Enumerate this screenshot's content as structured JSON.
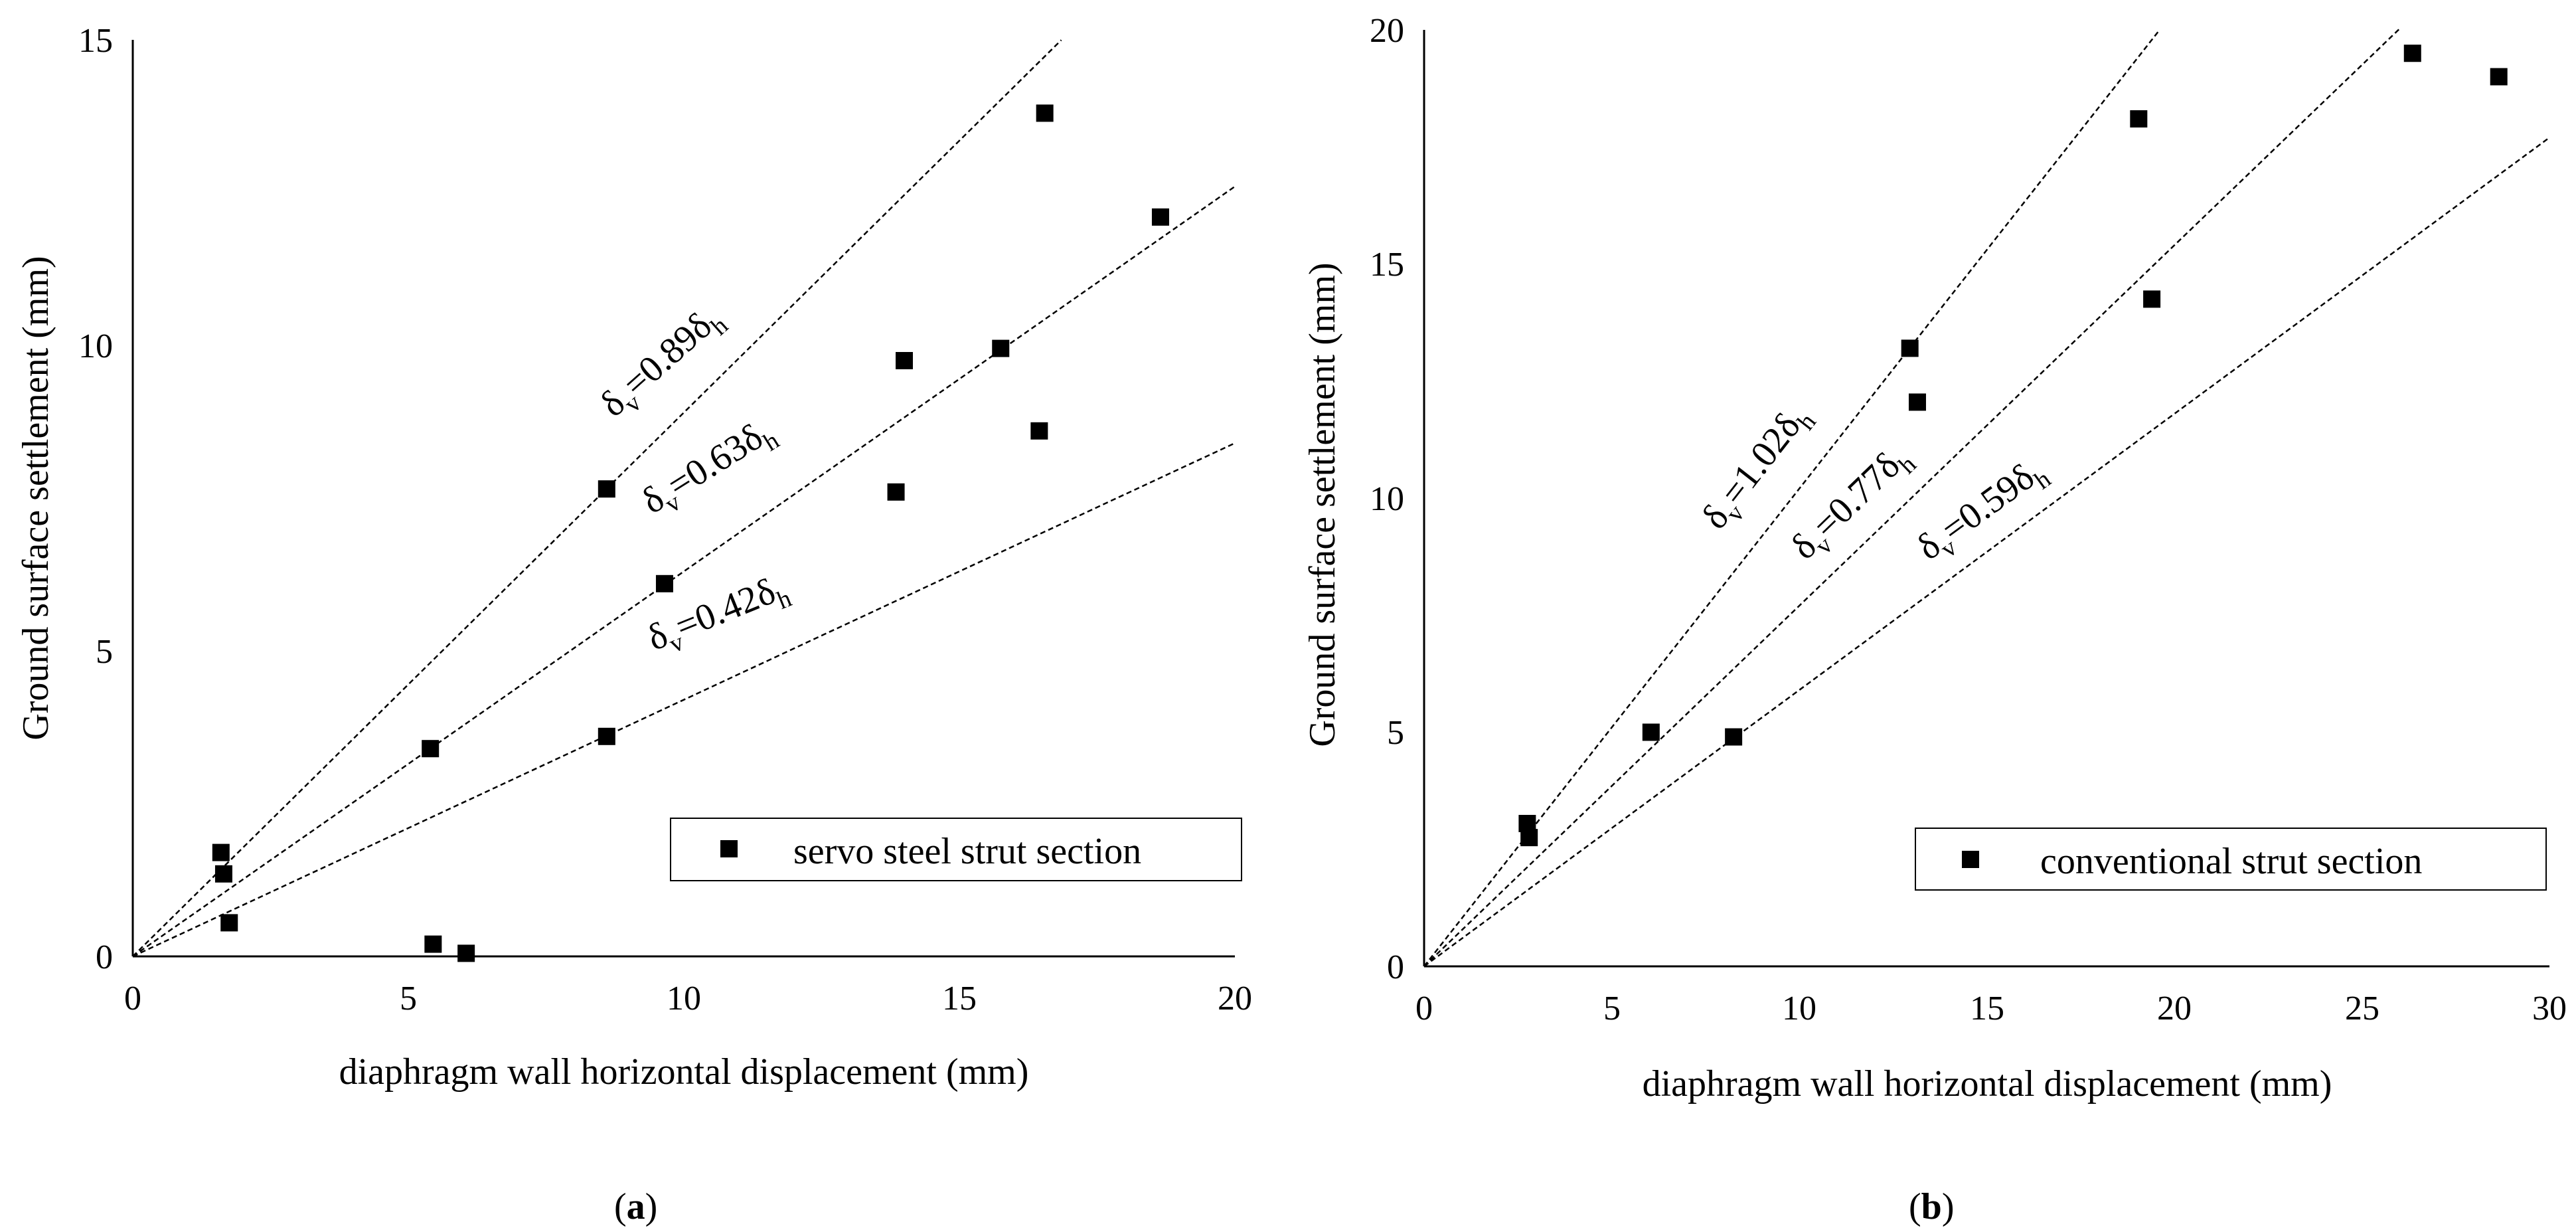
{
  "chart_data": [
    {
      "type": "scatter",
      "panel_label": "(a)",
      "panel_letter": "a",
      "xlabel": "diaphragm wall horizontal displacement (mm)",
      "ylabel": "Ground surface settlement (mm)",
      "xlim": [
        0,
        20
      ],
      "ylim": [
        0,
        15
      ],
      "xticks": [
        "0",
        "5",
        "10",
        "15",
        "20"
      ],
      "yticks": [
        "0",
        "5",
        "10",
        "15"
      ],
      "legend": {
        "label": "servo steel strut section",
        "placement": "lower-right"
      },
      "series": [
        {
          "name": "servo steel strut section",
          "marker": "square",
          "x": [
            1.6,
            1.65,
            1.75,
            5.4,
            5.45,
            6.05,
            8.6,
            8.6,
            9.65,
            13.85,
            14.0,
            15.75,
            16.45,
            16.55,
            18.65
          ],
          "y": [
            1.7,
            1.35,
            0.55,
            3.4,
            0.2,
            0.05,
            3.6,
            7.65,
            6.1,
            7.6,
            9.75,
            9.95,
            8.6,
            13.8,
            12.1
          ]
        }
      ],
      "reference_lines": [
        {
          "slope": 0.89,
          "x_end": 16.85,
          "label_main": "δ",
          "label_sub1": "v",
          "label_mid": "=0.89δ",
          "label_sub2": "h"
        },
        {
          "slope": 0.63,
          "x_end": 20.0,
          "label_main": "δ",
          "label_sub1": "v",
          "label_mid": "=0.63δ",
          "label_sub2": "h"
        },
        {
          "slope": 0.42,
          "x_end": 20.0,
          "label_main": "δ",
          "label_sub1": "v",
          "label_mid": "=0.42δ",
          "label_sub2": "h"
        }
      ]
    },
    {
      "type": "scatter",
      "panel_label": "(b)",
      "panel_letter": "b",
      "xlabel": "diaphragm wall horizontal displacement (mm)",
      "ylabel": "Ground surface settlement (mm)",
      "xlim": [
        0,
        30
      ],
      "ylim": [
        0,
        20
      ],
      "xticks": [
        "0",
        "5",
        "10",
        "15",
        "20",
        "25",
        "30"
      ],
      "yticks": [
        "0",
        "5",
        "10",
        "15",
        "20"
      ],
      "legend": {
        "label": "conventional strut section",
        "placement": "lower-right"
      },
      "series": [
        {
          "name": "conventional strut section",
          "marker": "square",
          "x": [
            2.75,
            2.8,
            6.05,
            8.25,
            12.95,
            13.15,
            19.05,
            19.4,
            26.35,
            28.65
          ],
          "y": [
            3.05,
            2.75,
            5.0,
            4.9,
            13.2,
            12.05,
            18.1,
            14.25,
            19.5,
            19.0
          ]
        }
      ],
      "reference_lines": [
        {
          "slope": 1.02,
          "x_end": 19.6,
          "label_main": "δ",
          "label_sub1": "v",
          "label_mid": "=1.02δ",
          "label_sub2": "h"
        },
        {
          "slope": 0.77,
          "x_end": 26.0,
          "label_main": "δ",
          "label_sub1": "v",
          "label_mid": "=0.77δ",
          "label_sub2": "h"
        },
        {
          "slope": 0.59,
          "x_end": 30.0,
          "label_main": "δ",
          "label_sub1": "v",
          "label_mid": "=0.59δ",
          "label_sub2": "h"
        }
      ]
    }
  ]
}
